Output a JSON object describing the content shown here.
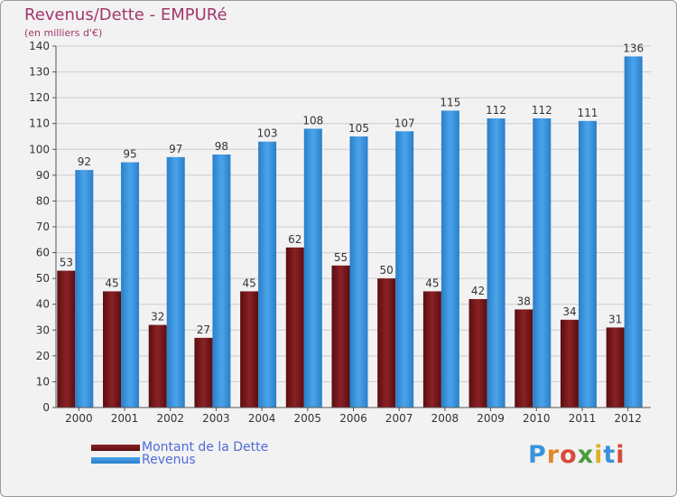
{
  "chart_data": {
    "type": "bar",
    "title": "Revenus/Dette - EMPURé",
    "subtitle": "(en milliers d'€)",
    "categories": [
      "2000",
      "2001",
      "2002",
      "2003",
      "2004",
      "2005",
      "2006",
      "2007",
      "2008",
      "2009",
      "2010",
      "2011",
      "2012"
    ],
    "series": [
      {
        "name": "Montant de la Dette",
        "values": [
          53,
          45,
          32,
          27,
          45,
          62,
          55,
          50,
          45,
          42,
          38,
          34,
          31
        ],
        "color": "#7a1a1e"
      },
      {
        "name": "Revenus",
        "values": [
          92,
          95,
          97,
          98,
          103,
          108,
          105,
          107,
          115,
          112,
          112,
          111,
          136
        ],
        "color": "#3a92db"
      }
    ],
    "ylim": [
      0,
      140
    ],
    "yticks": [
      0,
      10,
      20,
      30,
      40,
      50,
      60,
      70,
      80,
      90,
      100,
      110,
      120,
      130,
      140
    ],
    "grid": true,
    "legend": "bottom-left"
  },
  "logo": {
    "text": "Proxiti",
    "colors": [
      "#3a92db",
      "#e0882a",
      "#d84a3a",
      "#4a9a3a",
      "#e0b02a",
      "#3a92db",
      "#d84a3a"
    ]
  }
}
